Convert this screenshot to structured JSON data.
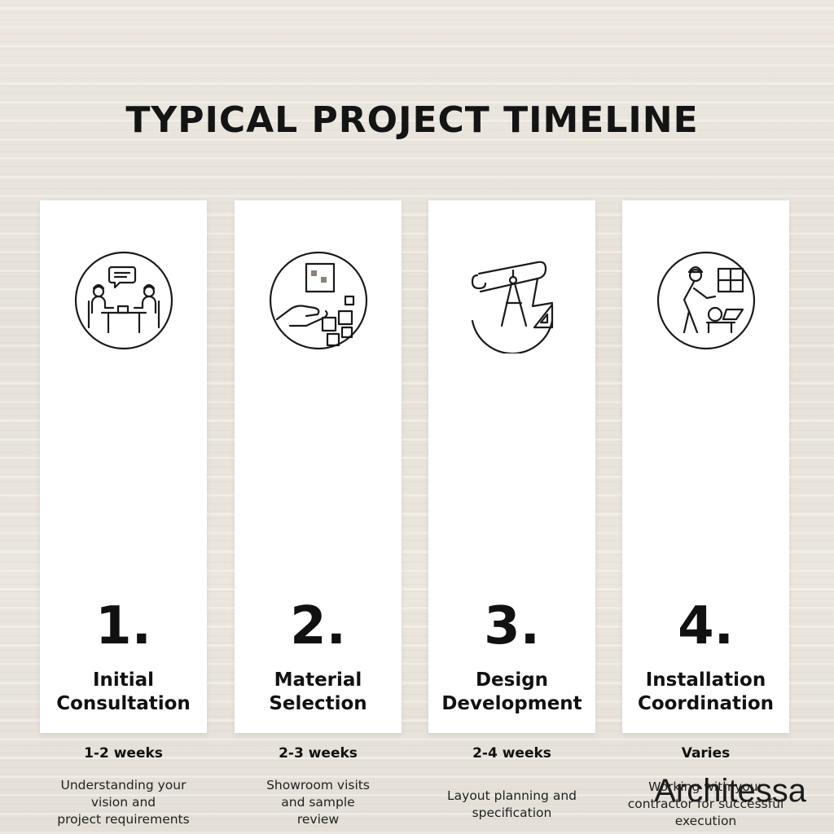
{
  "title": "TYPICAL PROJECT TIMELINE",
  "steps": [
    {
      "number": "1.",
      "title_lines": [
        "Initial",
        "Consultation"
      ],
      "duration": "1-2 weeks",
      "desc_lines": [
        "Understanding your",
        "vision and",
        "project requirements"
      ],
      "icon": "consultation-icon"
    },
    {
      "number": "2.",
      "title_lines": [
        "Material",
        "Selection"
      ],
      "duration": "2-3 weeks",
      "desc_lines": [
        "Showroom visits",
        "and sample",
        "review"
      ],
      "icon": "material-samples-icon"
    },
    {
      "number": "3.",
      "title_lines": [
        "Design",
        "Development"
      ],
      "duration": "2-4 weeks",
      "desc_lines": [
        "Layout planning and",
        "specification"
      ],
      "icon": "drafting-tools-icon"
    },
    {
      "number": "4.",
      "title_lines": [
        "Installation",
        "Coordination"
      ],
      "duration": "Varies",
      "desc_lines": [
        "Working with your",
        "contractor for successful",
        "execution"
      ],
      "icon": "installer-icon"
    }
  ],
  "brand": "Architessa"
}
